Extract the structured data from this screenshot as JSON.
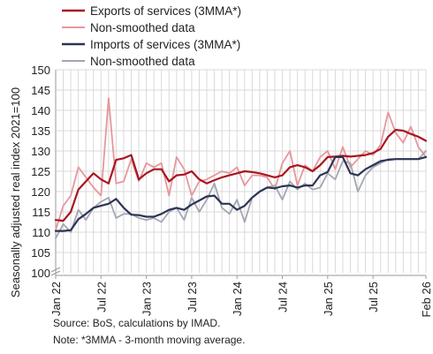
{
  "chart_data": {
    "type": "line",
    "title": "",
    "xlabel": "",
    "ylabel": "Seasonally adjusted real index 2021=100",
    "ylim": [
      100,
      150
    ],
    "yticks": [
      100,
      105,
      110,
      115,
      120,
      125,
      130,
      135,
      140,
      145,
      150
    ],
    "x_range": [
      "Jan 22",
      "Feb 26"
    ],
    "x_ticks": [
      "Jan 22",
      "Jul 22",
      "Jan 23",
      "Jul 23",
      "Jan 24",
      "Jul 24",
      "Jan 25",
      "Jul 25",
      "Feb 26"
    ],
    "y_axis_break": true,
    "grid": true,
    "legend_position": "top-left",
    "x": [
      "Jan 22",
      "Feb 22",
      "Mar 22",
      "Apr 22",
      "May 22",
      "Jun 22",
      "Jul 22",
      "Aug 22",
      "Sep 22",
      "Oct 22",
      "Nov 22",
      "Dec 22",
      "Jan 23",
      "Feb 23",
      "Mar 23",
      "Apr 23",
      "May 23",
      "Jun 23",
      "Jul 23",
      "Aug 23",
      "Sep 23",
      "Oct 23",
      "Nov 23",
      "Dec 23",
      "Jan 24",
      "Feb 24",
      "Mar 24",
      "Apr 24",
      "May 24",
      "Jun 24",
      "Jul 24",
      "Aug 24",
      "Sep 24",
      "Oct 24",
      "Nov 24",
      "Dec 24",
      "Jan 25",
      "Feb 25",
      "Mar 25",
      "Apr 25",
      "May 25",
      "Jun 25",
      "Jul 25",
      "Aug 25",
      "Sep 25",
      "Oct 25",
      "Nov 25",
      "Dec 25",
      "Jan 26",
      "Feb 26"
    ],
    "series": [
      {
        "name": "Exports of services (3MMA*)",
        "color": "#a8151f",
        "width": 2.2,
        "values": [
          113.0,
          112.8,
          115.0,
          120.5,
          122.5,
          124.5,
          123.0,
          122.0,
          127.8,
          128.2,
          129.0,
          123.0,
          124.5,
          125.5,
          125.5,
          122.5,
          124.0,
          124.2,
          125.0,
          123.0,
          122.0,
          122.8,
          123.5,
          124.0,
          124.5,
          125.0,
          124.8,
          124.5,
          124.0,
          123.5,
          124.0,
          126.0,
          126.5,
          126.0,
          125.0,
          126.5,
          128.5,
          128.6,
          128.8,
          128.6,
          128.8,
          129.0,
          129.5,
          130.5,
          133.5,
          135.2,
          135.0,
          134.2,
          133.5,
          132.5
        ]
      },
      {
        "name": "Non-smoothed data",
        "color": "#e7979b",
        "width": 1.8,
        "values": [
          110.5,
          116.5,
          119.0,
          126.0,
          123.5,
          121.0,
          119.0,
          143.0,
          122.0,
          122.5,
          128.0,
          122.5,
          127.0,
          126.0,
          127.0,
          119.0,
          128.5,
          125.5,
          119.0,
          122.5,
          123.0,
          124.0,
          125.0,
          124.5,
          126.0,
          121.5,
          124.0,
          124.0,
          123.5,
          120.5,
          127.0,
          130.0,
          121.5,
          126.5,
          125.0,
          128.5,
          130.0,
          125.5,
          131.0,
          126.0,
          128.0,
          130.0,
          129.0,
          131.5,
          139.5,
          134.5,
          132.0,
          136.0,
          131.0,
          128.5
        ]
      },
      {
        "name": "Imports of services (3MMA*)",
        "color": "#2c3454",
        "width": 2.2,
        "values": [
          110.3,
          110.3,
          110.5,
          113.2,
          114.5,
          116.0,
          116.5,
          117.0,
          118.2,
          116.0,
          114.3,
          114.2,
          113.8,
          113.8,
          114.5,
          115.5,
          116.0,
          115.5,
          116.8,
          117.8,
          118.8,
          119.0,
          117.0,
          117.0,
          115.5,
          116.5,
          118.5,
          120.0,
          121.0,
          120.8,
          121.3,
          121.5,
          121.0,
          121.5,
          121.5,
          124.0,
          124.8,
          128.5,
          128.5,
          124.5,
          124.0,
          125.5,
          126.5,
          127.5,
          127.8,
          128.0,
          128.0,
          128.0,
          128.0,
          128.5
        ]
      },
      {
        "name": "Non-smoothed data",
        "color": "#a2a6b2",
        "width": 1.8,
        "values": [
          108.5,
          112.0,
          110.0,
          115.5,
          113.0,
          116.0,
          117.5,
          118.5,
          113.5,
          114.5,
          114.5,
          113.5,
          113.0,
          113.5,
          112.5,
          115.0,
          116.0,
          113.0,
          118.5,
          115.0,
          118.0,
          122.0,
          116.0,
          114.5,
          118.0,
          112.5,
          118.5,
          120.0,
          121.0,
          121.5,
          118.0,
          122.5,
          120.5,
          122.0,
          120.5,
          121.0,
          124.5,
          123.0,
          127.5,
          127.0,
          120.0,
          124.0,
          126.0,
          127.0,
          128.0,
          128.0,
          128.0,
          128.0,
          128.0,
          130.0
        ]
      }
    ]
  },
  "source_note": "Source: BoS, calculations by IMAD.",
  "footnote": "Note: *3MMA - 3-month moving average."
}
